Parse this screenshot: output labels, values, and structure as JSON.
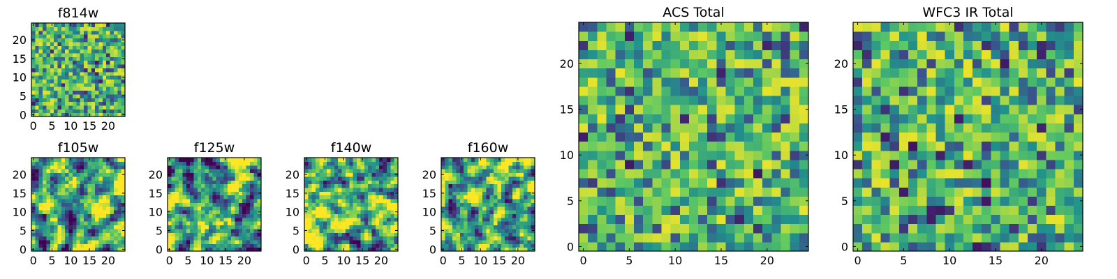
{
  "colormap": "viridis",
  "chart_data": [
    {
      "type": "heatmap",
      "title": "f814w",
      "xticks": [
        "0",
        "5",
        "10",
        "15",
        "20"
      ],
      "yticks": [
        "0",
        "5",
        "10",
        "15",
        "20"
      ],
      "xlim": [
        -0.5,
        24.5
      ],
      "ylim": [
        -0.5,
        24.5
      ],
      "grid": "25x25",
      "values": "noise, colour-scaled (viridis)"
    },
    {
      "type": "heatmap",
      "title": "f105w",
      "xticks": [
        "0",
        "5",
        "10",
        "15",
        "20"
      ],
      "yticks": [
        "0",
        "5",
        "10",
        "15",
        "20"
      ],
      "xlim": [
        -0.5,
        24.5
      ],
      "ylim": [
        -0.5,
        24.5
      ],
      "grid": "25x25",
      "values": "noise, colour-scaled (viridis)"
    },
    {
      "type": "heatmap",
      "title": "f125w",
      "xticks": [
        "0",
        "5",
        "10",
        "15",
        "20"
      ],
      "yticks": [
        "0",
        "5",
        "10",
        "15",
        "20"
      ],
      "xlim": [
        -0.5,
        24.5
      ],
      "ylim": [
        -0.5,
        24.5
      ],
      "grid": "25x25",
      "values": "noise, colour-scaled (viridis)"
    },
    {
      "type": "heatmap",
      "title": "f140w",
      "xticks": [
        "0",
        "5",
        "10",
        "15",
        "20"
      ],
      "yticks": [
        "0",
        "5",
        "10",
        "15",
        "20"
      ],
      "xlim": [
        -0.5,
        24.5
      ],
      "ylim": [
        -0.5,
        24.5
      ],
      "grid": "25x25",
      "values": "noise, colour-scaled (viridis)"
    },
    {
      "type": "heatmap",
      "title": "f160w",
      "xticks": [
        "0",
        "5",
        "10",
        "15",
        "20"
      ],
      "yticks": [
        "0",
        "5",
        "10",
        "15",
        "20"
      ],
      "xlim": [
        -0.5,
        24.5
      ],
      "ylim": [
        -0.5,
        24.5
      ],
      "grid": "25x25",
      "values": "noise, colour-scaled (viridis)"
    },
    {
      "type": "heatmap",
      "title": "ACS Total",
      "xticks": [
        "0",
        "5",
        "10",
        "15",
        "20"
      ],
      "yticks": [
        "0",
        "5",
        "10",
        "15",
        "20"
      ],
      "xlim": [
        -0.5,
        24.5
      ],
      "ylim": [
        -0.5,
        24.5
      ],
      "grid": "25x25",
      "values": "noise, colour-scaled (viridis)"
    },
    {
      "type": "heatmap",
      "title": "WFC3 IR Total",
      "xticks": [
        "0",
        "5",
        "10",
        "15",
        "20"
      ],
      "yticks": [
        "0",
        "5",
        "10",
        "15",
        "20"
      ],
      "xlim": [
        -0.5,
        24.5
      ],
      "ylim": [
        -0.5,
        24.5
      ],
      "grid": "25x25",
      "values": "noise, colour-scaled (viridis)"
    }
  ]
}
